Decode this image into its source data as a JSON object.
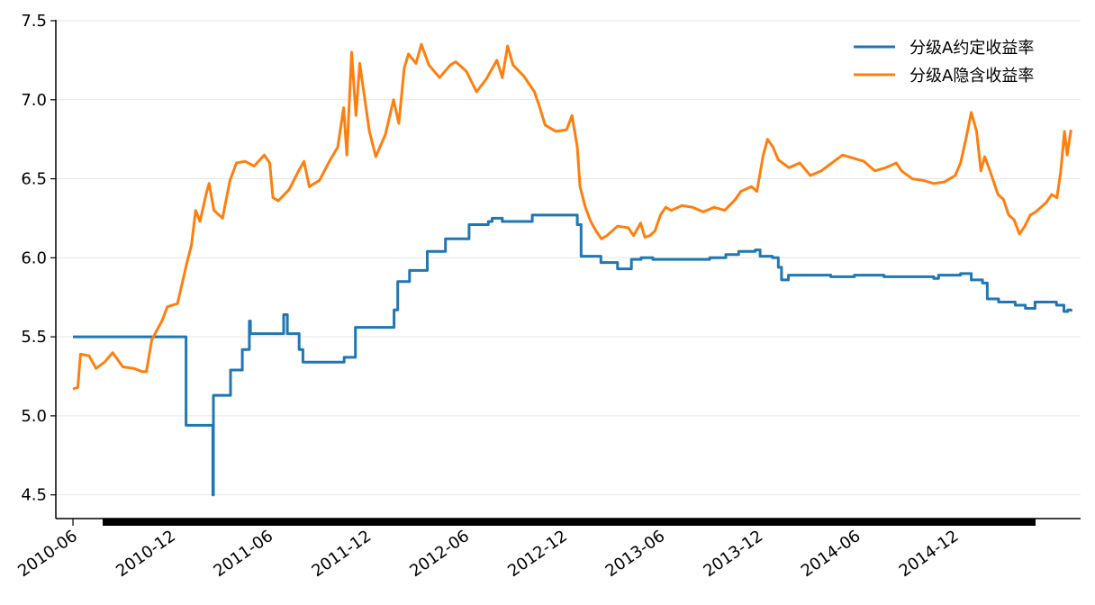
{
  "chart_data": {
    "type": "line",
    "title": "",
    "xlabel": "",
    "ylabel": "",
    "ylim": [
      4.35,
      7.5
    ],
    "xlim": [
      "2010-04-30",
      "2015-07-25"
    ],
    "y_ticks": [
      "4.5",
      "5.0",
      "5.5",
      "6.0",
      "6.5",
      "7.0",
      "7.5"
    ],
    "x_ticks": [
      "2010-06",
      "2010-12",
      "2011-06",
      "2011-12",
      "2012-06",
      "2012-12",
      "2013-06",
      "2013-12",
      "2014-06",
      "2014-12"
    ],
    "grid": "horizontal",
    "legend_position": "top-right",
    "colors": {
      "fixed": "#1f77b4",
      "implied": "#ff7f0e",
      "grid": "#e6e6e6"
    },
    "series": [
      {
        "name": "分级A约定收益率",
        "step": true,
        "points": [
          [
            "2010-06-01",
            5.5
          ],
          [
            "2010-12-28",
            5.5
          ],
          [
            "2010-12-29",
            4.94
          ],
          [
            "2011-02-16",
            4.94
          ],
          [
            "2011-02-17",
            4.5
          ],
          [
            "2011-02-18",
            5.13
          ],
          [
            "2011-03-21",
            5.13
          ],
          [
            "2011-03-22",
            5.29
          ],
          [
            "2011-04-12",
            5.29
          ],
          [
            "2011-04-13",
            5.42
          ],
          [
            "2011-04-25",
            5.42
          ],
          [
            "2011-04-26",
            5.6
          ],
          [
            "2011-04-28",
            5.52
          ],
          [
            "2011-06-28",
            5.52
          ],
          [
            "2011-06-29",
            5.64
          ],
          [
            "2011-07-06",
            5.52
          ],
          [
            "2011-07-27",
            5.52
          ],
          [
            "2011-07-28",
            5.42
          ],
          [
            "2011-08-04",
            5.34
          ],
          [
            "2011-10-19",
            5.34
          ],
          [
            "2011-10-20",
            5.37
          ],
          [
            "2011-11-09",
            5.37
          ],
          [
            "2011-11-10",
            5.56
          ],
          [
            "2012-01-20",
            5.56
          ],
          [
            "2012-01-21",
            5.67
          ],
          [
            "2012-01-28",
            5.85
          ],
          [
            "2012-02-18",
            5.85
          ],
          [
            "2012-02-19",
            5.92
          ],
          [
            "2012-03-22",
            5.92
          ],
          [
            "2012-03-23",
            6.04
          ],
          [
            "2012-04-25",
            6.04
          ],
          [
            "2012-04-26",
            6.12
          ],
          [
            "2012-06-08",
            6.12
          ],
          [
            "2012-06-09",
            6.21
          ],
          [
            "2012-07-15",
            6.23
          ],
          [
            "2012-07-22",
            6.25
          ],
          [
            "2012-08-10",
            6.23
          ],
          [
            "2012-10-04",
            6.23
          ],
          [
            "2012-10-05",
            6.27
          ],
          [
            "2012-12-27",
            6.27
          ],
          [
            "2012-12-28",
            6.21
          ],
          [
            "2013-01-04",
            6.01
          ],
          [
            "2013-02-09",
            6.01
          ],
          [
            "2013-02-10",
            5.97
          ],
          [
            "2013-03-12",
            5.97
          ],
          [
            "2013-03-13",
            5.93
          ],
          [
            "2013-04-07",
            5.93
          ],
          [
            "2013-04-08",
            5.99
          ],
          [
            "2013-04-26",
            6.0
          ],
          [
            "2013-05-18",
            5.99
          ],
          [
            "2013-08-30",
            5.99
          ],
          [
            "2013-09-01",
            6.0
          ],
          [
            "2013-10-01",
            6.02
          ],
          [
            "2013-10-25",
            6.04
          ],
          [
            "2013-11-25",
            6.05
          ],
          [
            "2013-12-04",
            6.01
          ],
          [
            "2013-12-27",
            6.0
          ],
          [
            "2014-01-07",
            5.94
          ],
          [
            "2014-01-13",
            5.86
          ],
          [
            "2014-01-26",
            5.89
          ],
          [
            "2014-03-27",
            5.89
          ],
          [
            "2014-04-15",
            5.88
          ],
          [
            "2014-05-29",
            5.89
          ],
          [
            "2014-07-23",
            5.88
          ],
          [
            "2014-09-21",
            5.88
          ],
          [
            "2014-10-24",
            5.87
          ],
          [
            "2014-11-02",
            5.89
          ],
          [
            "2014-12-13",
            5.9
          ],
          [
            "2015-01-02",
            5.86
          ],
          [
            "2015-01-23",
            5.84
          ],
          [
            "2015-02-01",
            5.74
          ],
          [
            "2015-02-22",
            5.72
          ],
          [
            "2015-03-25",
            5.7
          ],
          [
            "2015-04-13",
            5.68
          ],
          [
            "2015-05-01",
            5.72
          ],
          [
            "2015-06-01",
            5.72
          ],
          [
            "2015-06-10",
            5.7
          ],
          [
            "2015-06-24",
            5.66
          ],
          [
            "2015-07-01",
            5.67
          ],
          [
            "2015-07-07",
            5.66
          ]
        ]
      },
      {
        "name": "分级A隐含收益率",
        "step": false,
        "points": [
          [
            "2010-06-01",
            5.17
          ],
          [
            "2010-06-10",
            5.18
          ],
          [
            "2010-06-15",
            5.39
          ],
          [
            "2010-07-01",
            5.38
          ],
          [
            "2010-07-14",
            5.3
          ],
          [
            "2010-07-30",
            5.34
          ],
          [
            "2010-08-14",
            5.4
          ],
          [
            "2010-09-02",
            5.31
          ],
          [
            "2010-09-22",
            5.3
          ],
          [
            "2010-10-08",
            5.28
          ],
          [
            "2010-10-16",
            5.28
          ],
          [
            "2010-10-26",
            5.48
          ],
          [
            "2010-11-14",
            5.6
          ],
          [
            "2010-11-24",
            5.69
          ],
          [
            "2010-12-13",
            5.71
          ],
          [
            "2010-12-30",
            5.96
          ],
          [
            "2011-01-08",
            6.08
          ],
          [
            "2011-01-16",
            6.3
          ],
          [
            "2011-01-24",
            6.23
          ],
          [
            "2011-02-05",
            6.41
          ],
          [
            "2011-02-10",
            6.47
          ],
          [
            "2011-02-19",
            6.3
          ],
          [
            "2011-03-07",
            6.25
          ],
          [
            "2011-03-21",
            6.49
          ],
          [
            "2011-04-02",
            6.6
          ],
          [
            "2011-04-18",
            6.61
          ],
          [
            "2011-05-05",
            6.58
          ],
          [
            "2011-05-24",
            6.65
          ],
          [
            "2011-06-03",
            6.6
          ],
          [
            "2011-06-09",
            6.38
          ],
          [
            "2011-06-19",
            6.36
          ],
          [
            "2011-07-09",
            6.43
          ],
          [
            "2011-07-27",
            6.55
          ],
          [
            "2011-08-06",
            6.61
          ],
          [
            "2011-08-16",
            6.45
          ],
          [
            "2011-09-04",
            6.49
          ],
          [
            "2011-09-24",
            6.62
          ],
          [
            "2011-10-08",
            6.7
          ],
          [
            "2011-10-19",
            6.95
          ],
          [
            "2011-10-25",
            6.65
          ],
          [
            "2011-11-03",
            7.3
          ],
          [
            "2011-11-11",
            6.9
          ],
          [
            "2011-11-18",
            7.23
          ],
          [
            "2011-12-06",
            6.8
          ],
          [
            "2011-12-18",
            6.64
          ],
          [
            "2012-01-05",
            6.78
          ],
          [
            "2012-01-20",
            7.0
          ],
          [
            "2012-01-30",
            6.85
          ],
          [
            "2012-02-09",
            7.2
          ],
          [
            "2012-02-17",
            7.29
          ],
          [
            "2012-03-02",
            7.23
          ],
          [
            "2012-03-12",
            7.35
          ],
          [
            "2012-03-26",
            7.22
          ],
          [
            "2012-04-15",
            7.14
          ],
          [
            "2012-05-05",
            7.22
          ],
          [
            "2012-05-15",
            7.24
          ],
          [
            "2012-06-04",
            7.18
          ],
          [
            "2012-06-23",
            7.05
          ],
          [
            "2012-07-11",
            7.13
          ],
          [
            "2012-07-31",
            7.25
          ],
          [
            "2012-08-10",
            7.14
          ],
          [
            "2012-08-20",
            7.34
          ],
          [
            "2012-08-30",
            7.22
          ],
          [
            "2012-09-19",
            7.15
          ],
          [
            "2012-10-09",
            7.05
          ],
          [
            "2012-10-19",
            6.95
          ],
          [
            "2012-10-29",
            6.84
          ],
          [
            "2012-11-18",
            6.8
          ],
          [
            "2012-12-08",
            6.81
          ],
          [
            "2012-12-18",
            6.9
          ],
          [
            "2012-12-28",
            6.7
          ],
          [
            "2013-01-02",
            6.45
          ],
          [
            "2013-01-12",
            6.32
          ],
          [
            "2013-01-22",
            6.23
          ],
          [
            "2013-02-01",
            6.17
          ],
          [
            "2013-02-11",
            6.12
          ],
          [
            "2013-02-21",
            6.14
          ],
          [
            "2013-03-13",
            6.2
          ],
          [
            "2013-04-02",
            6.19
          ],
          [
            "2013-04-12",
            6.14
          ],
          [
            "2013-04-25",
            6.22
          ],
          [
            "2013-05-03",
            6.13
          ],
          [
            "2013-05-12",
            6.14
          ],
          [
            "2013-05-22",
            6.17
          ],
          [
            "2013-06-01",
            6.27
          ],
          [
            "2013-06-11",
            6.32
          ],
          [
            "2013-06-21",
            6.3
          ],
          [
            "2013-07-11",
            6.33
          ],
          [
            "2013-07-31",
            6.32
          ],
          [
            "2013-08-20",
            6.29
          ],
          [
            "2013-09-09",
            6.32
          ],
          [
            "2013-09-29",
            6.3
          ],
          [
            "2013-10-19",
            6.37
          ],
          [
            "2013-10-29",
            6.42
          ],
          [
            "2013-11-18",
            6.45
          ],
          [
            "2013-11-28",
            6.42
          ],
          [
            "2013-12-10",
            6.65
          ],
          [
            "2013-12-18",
            6.75
          ],
          [
            "2013-12-28",
            6.7
          ],
          [
            "2014-01-07",
            6.62
          ],
          [
            "2014-01-27",
            6.57
          ],
          [
            "2014-02-16",
            6.6
          ],
          [
            "2014-03-08",
            6.52
          ],
          [
            "2014-03-28",
            6.55
          ],
          [
            "2014-04-17",
            6.6
          ],
          [
            "2014-05-07",
            6.65
          ],
          [
            "2014-05-27",
            6.63
          ],
          [
            "2014-06-16",
            6.61
          ],
          [
            "2014-07-06",
            6.55
          ],
          [
            "2014-07-26",
            6.57
          ],
          [
            "2014-08-15",
            6.6
          ],
          [
            "2014-08-25",
            6.55
          ],
          [
            "2014-09-14",
            6.5
          ],
          [
            "2014-10-04",
            6.49
          ],
          [
            "2014-10-24",
            6.47
          ],
          [
            "2014-11-13",
            6.48
          ],
          [
            "2014-12-03",
            6.52
          ],
          [
            "2014-12-13",
            6.6
          ],
          [
            "2014-12-23",
            6.75
          ],
          [
            "2015-01-02",
            6.92
          ],
          [
            "2015-01-12",
            6.8
          ],
          [
            "2015-01-20",
            6.55
          ],
          [
            "2015-01-27",
            6.64
          ],
          [
            "2015-02-06",
            6.55
          ],
          [
            "2015-02-21",
            6.4
          ],
          [
            "2015-03-03",
            6.37
          ],
          [
            "2015-03-13",
            6.27
          ],
          [
            "2015-03-23",
            6.24
          ],
          [
            "2015-04-02",
            6.15
          ],
          [
            "2015-04-12",
            6.2
          ],
          [
            "2015-04-22",
            6.27
          ],
          [
            "2015-05-02",
            6.29
          ],
          [
            "2015-05-12",
            6.32
          ],
          [
            "2015-05-22",
            6.35
          ],
          [
            "2015-06-01",
            6.4
          ],
          [
            "2015-06-11",
            6.38
          ],
          [
            "2015-06-18",
            6.55
          ],
          [
            "2015-06-25",
            6.8
          ],
          [
            "2015-06-30",
            6.65
          ],
          [
            "2015-07-07",
            6.81
          ]
        ]
      }
    ]
  }
}
